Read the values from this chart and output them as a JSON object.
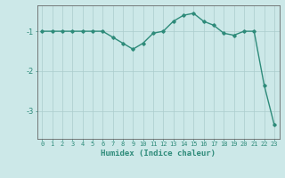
{
  "x": [
    0,
    1,
    2,
    3,
    4,
    5,
    6,
    7,
    8,
    9,
    10,
    11,
    12,
    13,
    14,
    15,
    16,
    17,
    18,
    19,
    20,
    21,
    22,
    23
  ],
  "y": [
    -1.0,
    -1.0,
    -1.0,
    -1.0,
    -1.0,
    -1.0,
    -1.0,
    -1.15,
    -1.3,
    -1.45,
    -1.3,
    -1.05,
    -1.0,
    -0.75,
    -0.6,
    -0.55,
    -0.75,
    -0.85,
    -1.05,
    -1.1,
    -1.0,
    -1.0,
    -2.35,
    -3.35
  ],
  "line_color": "#2e8b7a",
  "marker": "D",
  "marker_size": 1.8,
  "bg_color": "#cce8e8",
  "grid_color": "#aacccc",
  "axis_color": "#666666",
  "xlabel": "Humidex (Indice chaleur)",
  "xlabel_fontsize": 6.5,
  "tick_fontsize": 5.0,
  "ylim": [
    -3.7,
    -0.35
  ],
  "xlim": [
    -0.5,
    23.5
  ],
  "yticks": [
    -3,
    -2,
    -1
  ],
  "xticks": [
    0,
    1,
    2,
    3,
    4,
    5,
    6,
    7,
    8,
    9,
    10,
    11,
    12,
    13,
    14,
    15,
    16,
    17,
    18,
    19,
    20,
    21,
    22,
    23
  ],
  "linewidth": 1.0
}
